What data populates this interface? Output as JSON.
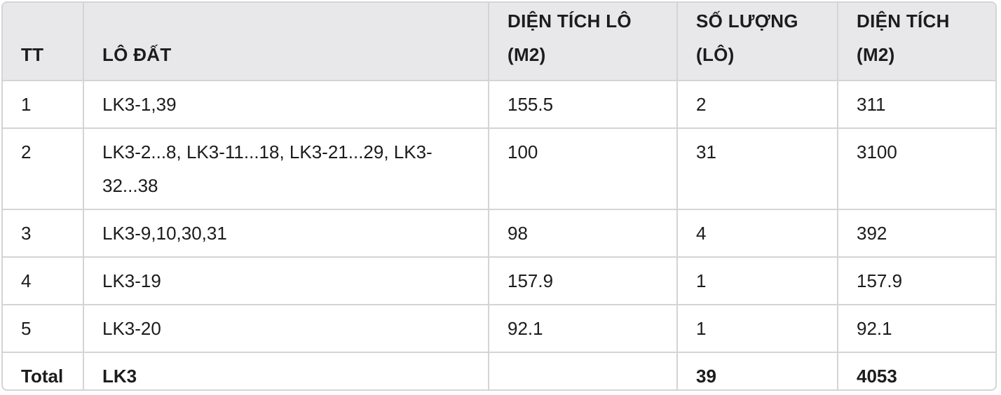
{
  "table": {
    "headers": [
      "TT",
      "LÔ ĐẤT",
      "DIỆN TÍCH LÔ (M2)",
      "SỐ LƯỢNG (LÔ)",
      "DIỆN TÍCH (M2)"
    ],
    "rows": [
      [
        "1",
        "LK3-1,39",
        "155.5",
        "2",
        "311"
      ],
      [
        "2",
        "LK3-2...8, LK3-11...18, LK3-21...29, LK3-32...38",
        "100",
        "31",
        "3100"
      ],
      [
        "3",
        "LK3-9,10,30,31",
        "98",
        "4",
        "392"
      ],
      [
        "4",
        "LK3-19",
        "157.9",
        "1",
        "157.9"
      ],
      [
        "5",
        "LK3-20",
        "92.1",
        "1",
        "92.1"
      ]
    ],
    "total": [
      "Total",
      "LK3",
      "",
      "39",
      "4053"
    ]
  }
}
